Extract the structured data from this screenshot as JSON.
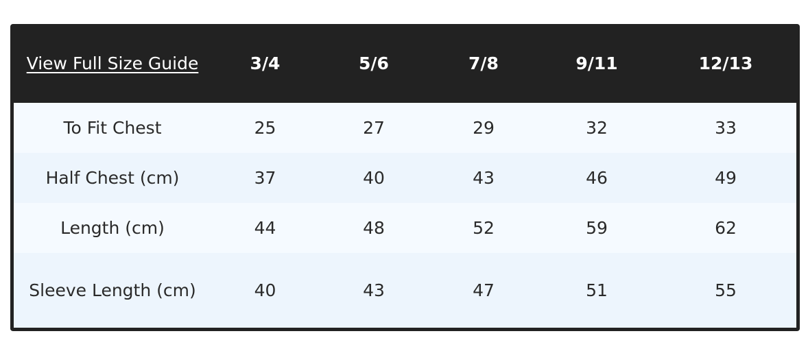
{
  "guide_link": "View Full Size Guide",
  "sizes": [
    "3/4",
    "5/6",
    "7/8",
    "9/11",
    "12/13"
  ],
  "rows": [
    {
      "label": "To Fit Chest",
      "values": [
        "25",
        "27",
        "29",
        "32",
        "33"
      ]
    },
    {
      "label": "Half Chest (cm)",
      "values": [
        "37",
        "40",
        "43",
        "46",
        "49"
      ]
    },
    {
      "label": "Length (cm)",
      "values": [
        "44",
        "48",
        "52",
        "59",
        "62"
      ]
    },
    {
      "label": "Sleeve Length (cm)",
      "values": [
        "40",
        "43",
        "47",
        "51",
        "55"
      ]
    }
  ]
}
